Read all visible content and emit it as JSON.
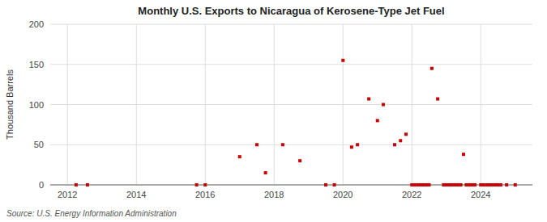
{
  "chart_data": {
    "type": "scatter",
    "title": "Monthly U.S. Exports to Nicaragua of Kerosene-Type Jet Fuel",
    "ylabel": "Thousand Barrels",
    "source": "Source: U.S. Energy Information Administration",
    "color": "#cc0000",
    "marker": "square",
    "grid": true,
    "xlim": [
      2011.5,
      2025.5
    ],
    "xticks": [
      2012,
      2014,
      2016,
      2018,
      2020,
      2022,
      2024
    ],
    "ylim": [
      0,
      200
    ],
    "yticks": [
      0,
      50,
      100,
      150,
      200
    ],
    "x": [
      2012.25,
      2012.58,
      2015.75,
      2016.0,
      2017.0,
      2017.5,
      2017.75,
      2018.25,
      2018.75,
      2019.5,
      2019.75,
      2020.0,
      2020.25,
      2020.42,
      2020.75,
      2021.0,
      2021.17,
      2021.5,
      2021.67,
      2021.83,
      2022.0,
      2022.08,
      2022.17,
      2022.25,
      2022.33,
      2022.42,
      2022.5,
      2022.58,
      2022.75,
      2022.92,
      2023.0,
      2023.08,
      2023.17,
      2023.25,
      2023.33,
      2023.42,
      2023.5,
      2023.58,
      2023.67,
      2023.75,
      2023.83,
      2024.0,
      2024.08,
      2024.17,
      2024.25,
      2024.33,
      2024.42,
      2024.5,
      2024.58,
      2024.75,
      2025.0
    ],
    "values": [
      0,
      0,
      0,
      0,
      35,
      50,
      15,
      50,
      30,
      0,
      0,
      155,
      47,
      50,
      107,
      80,
      100,
      50,
      55,
      63,
      0,
      0,
      0,
      0,
      0,
      0,
      0,
      145,
      107,
      0,
      0,
      0,
      0,
      0,
      0,
      0,
      38,
      0,
      0,
      0,
      0,
      0,
      0,
      0,
      0,
      0,
      0,
      0,
      0,
      0,
      0
    ]
  }
}
